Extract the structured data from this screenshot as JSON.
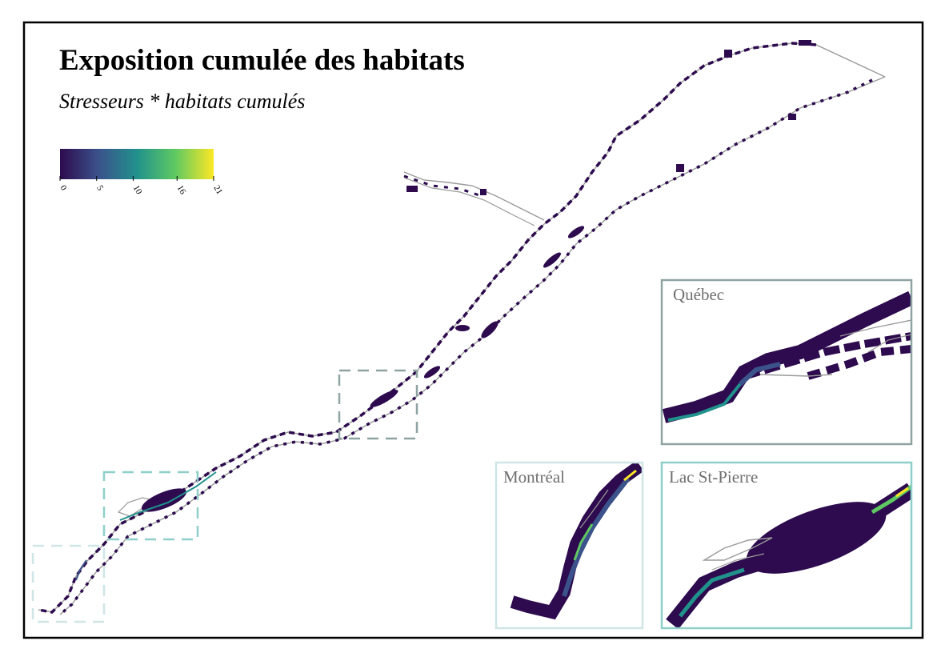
{
  "map": {
    "title": "Exposition cumulée des habitats",
    "subtitle": "Stresseurs * habitats cumulés",
    "legend": {
      "type": "continuous",
      "palette": "viridis",
      "colors": [
        "#2d0b4e",
        "#3b528b",
        "#21918c",
        "#5ec962",
        "#fde725"
      ],
      "ticks": [
        "0",
        "5",
        "10",
        "16",
        "21"
      ],
      "range": [
        0,
        21
      ]
    },
    "insets": [
      {
        "name": "Québec",
        "frame_color": "#8fa3a2"
      },
      {
        "name": "Montréal",
        "frame_color": "#cfe5e6"
      },
      {
        "name": "Lac St-Pierre",
        "frame_color": "#8fcfc9"
      }
    ],
    "colors": {
      "water_outline": "#9a9a9a",
      "low_value": "#2d0b4e",
      "border": "#000000"
    }
  }
}
